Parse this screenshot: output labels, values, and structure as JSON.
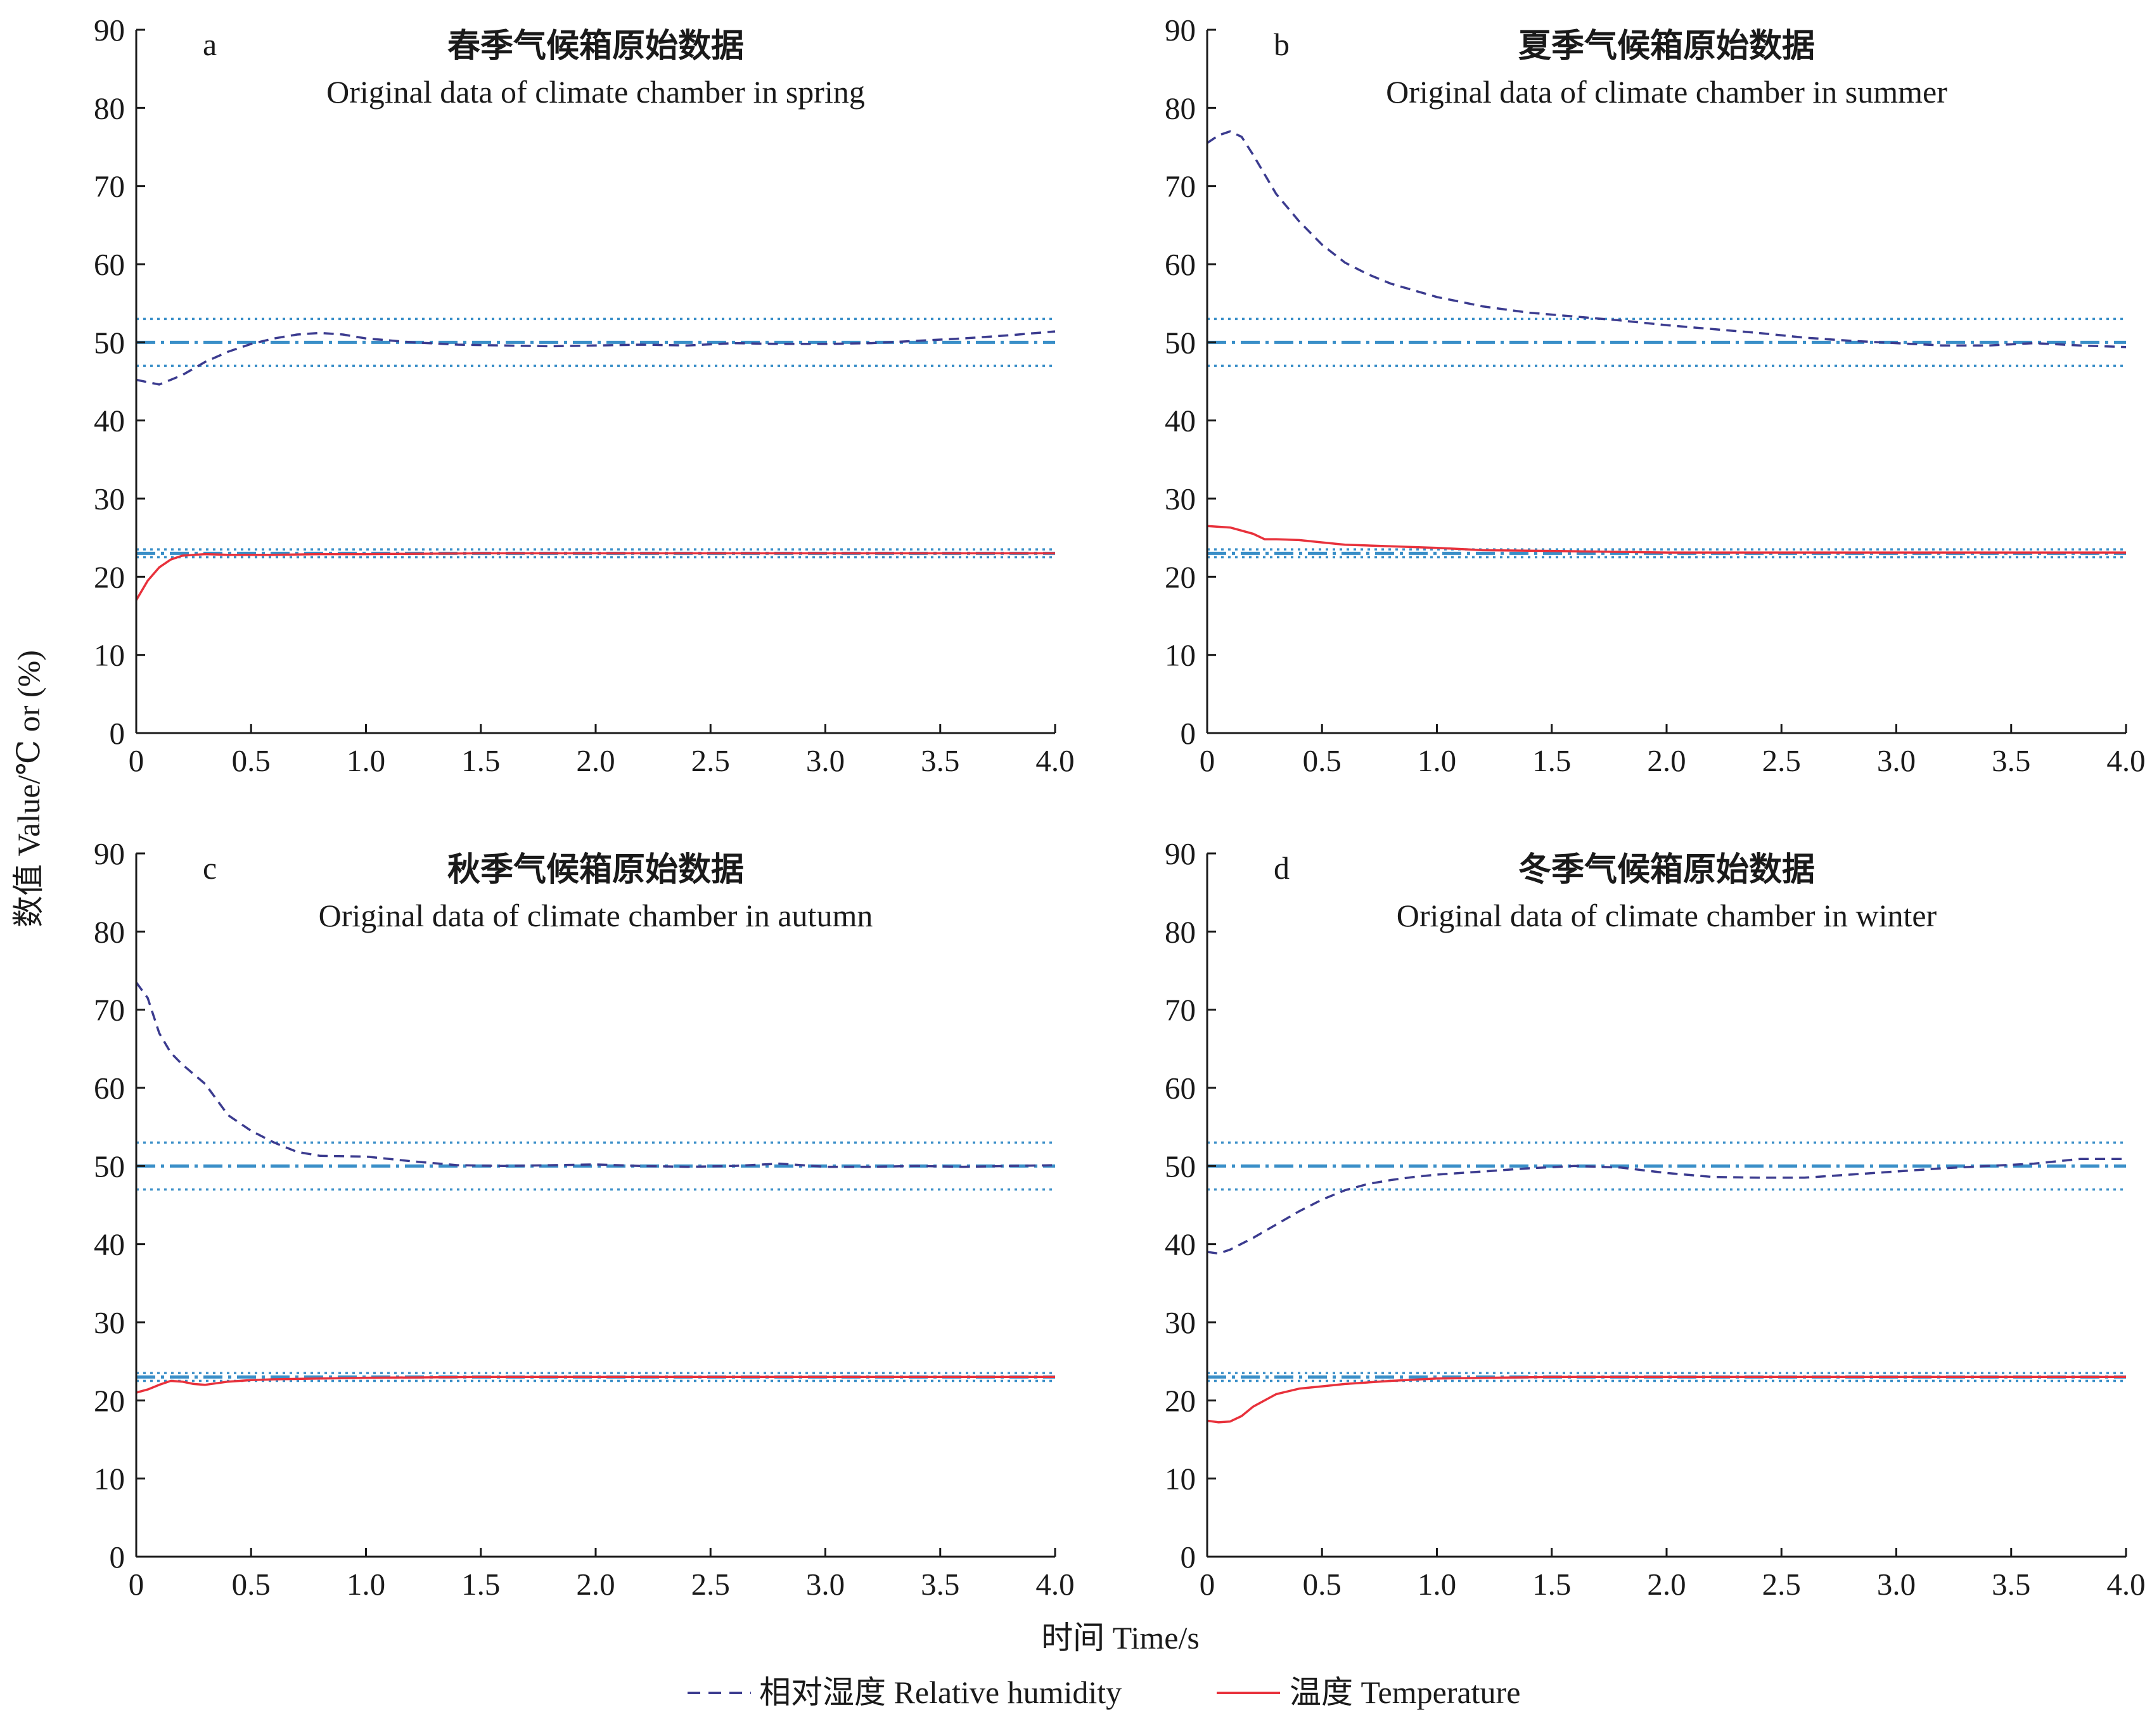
{
  "figure": {
    "ylabel": "数值  Value/℃ or (%)",
    "xlabel": "时间  Time/s",
    "legend": [
      {
        "label": "相对湿度  Relative humidity",
        "style": "dashed",
        "color": "#3b3b8f"
      },
      {
        "label": "温度  Temperature",
        "style": "solid",
        "color": "#e8313b"
      }
    ],
    "colors": {
      "humidity": "#3b3b8f",
      "temperature": "#e8313b",
      "reference": "#3a8fc8",
      "axis": "#1a1a1a"
    }
  },
  "chart_data": [
    {
      "type": "line",
      "panel": "a",
      "title": "春季气候箱原始数据",
      "subtitle": "Original data of climate chamber in spring",
      "xlim": [
        0,
        4
      ],
      "ylim": [
        0,
        90
      ],
      "xticks": [
        "0",
        "0.5",
        "1.0",
        "1.5",
        "2.0",
        "2.5",
        "3.0",
        "3.5",
        "4.0"
      ],
      "yticks": [
        "0",
        "10",
        "20",
        "30",
        "40",
        "50",
        "60",
        "70",
        "80",
        "90"
      ],
      "reference_lines": {
        "humidity_setpoint": 50,
        "humidity_band": [
          47,
          53
        ],
        "temperature_setpoint": 23,
        "temperature_band": [
          22.5,
          23.5
        ]
      },
      "series": [
        {
          "name": "相对湿度 Relative humidity",
          "x": [
            0,
            0.1,
            0.2,
            0.3,
            0.4,
            0.5,
            0.6,
            0.7,
            0.8,
            0.9,
            1.0,
            1.2,
            1.4,
            1.6,
            1.8,
            2.0,
            2.2,
            2.4,
            2.6,
            2.8,
            3.0,
            3.2,
            3.4,
            3.6,
            3.8,
            4.0
          ],
          "y": [
            45.2,
            44.6,
            45.8,
            47.5,
            48.8,
            49.8,
            50.5,
            51.0,
            51.2,
            51.0,
            50.5,
            50.0,
            49.7,
            49.6,
            49.5,
            49.6,
            49.7,
            49.6,
            49.9,
            49.8,
            49.8,
            49.9,
            50.2,
            50.5,
            50.9,
            51.4
          ]
        },
        {
          "name": "温度 Temperature",
          "x": [
            0,
            0.05,
            0.1,
            0.15,
            0.2,
            0.3,
            0.4,
            0.6,
            0.8,
            1.0,
            1.5,
            2.0,
            2.5,
            3.0,
            3.5,
            4.0
          ],
          "y": [
            17.0,
            19.5,
            21.2,
            22.2,
            22.7,
            22.9,
            22.8,
            22.8,
            22.9,
            22.9,
            23.0,
            23.0,
            23.0,
            23.0,
            23.0,
            23.0
          ]
        }
      ]
    },
    {
      "type": "line",
      "panel": "b",
      "title": "夏季气候箱原始数据",
      "subtitle": "Original data of climate chamber in summer",
      "xlim": [
        0,
        4
      ],
      "ylim": [
        0,
        90
      ],
      "xticks": [
        "0",
        "0.5",
        "1.0",
        "1.5",
        "2.0",
        "2.5",
        "3.0",
        "3.5",
        "4.0"
      ],
      "yticks": [
        "0",
        "10",
        "20",
        "30",
        "40",
        "50",
        "60",
        "70",
        "80",
        "90"
      ],
      "reference_lines": {
        "humidity_setpoint": 50,
        "humidity_band": [
          47,
          53
        ],
        "temperature_setpoint": 23,
        "temperature_band": [
          22.5,
          23.5
        ]
      },
      "series": [
        {
          "name": "相对湿度 Relative humidity",
          "x": [
            0,
            0.05,
            0.1,
            0.15,
            0.2,
            0.3,
            0.4,
            0.5,
            0.6,
            0.7,
            0.8,
            1.0,
            1.2,
            1.4,
            1.6,
            1.8,
            2.0,
            2.2,
            2.4,
            2.6,
            2.8,
            3.0,
            3.2,
            3.4,
            3.6,
            3.8,
            4.0
          ],
          "y": [
            75.5,
            76.5,
            77.0,
            76.3,
            74.0,
            69.0,
            65.5,
            62.5,
            60.2,
            58.7,
            57.5,
            55.8,
            54.6,
            53.8,
            53.3,
            52.8,
            52.2,
            51.7,
            51.2,
            50.6,
            50.2,
            49.9,
            49.6,
            49.6,
            49.9,
            49.6,
            49.4
          ]
        },
        {
          "name": "温度 Temperature",
          "x": [
            0,
            0.1,
            0.2,
            0.25,
            0.3,
            0.4,
            0.5,
            0.6,
            0.8,
            1.0,
            1.2,
            1.5,
            2.0,
            2.5,
            3.0,
            3.5,
            4.0
          ],
          "y": [
            26.5,
            26.3,
            25.5,
            24.8,
            24.8,
            24.7,
            24.4,
            24.1,
            23.9,
            23.7,
            23.4,
            23.3,
            23.1,
            23.1,
            23.1,
            23.1,
            23.1
          ]
        }
      ]
    },
    {
      "type": "line",
      "panel": "c",
      "title": "秋季气候箱原始数据",
      "subtitle": "Original data of climate chamber in autumn",
      "xlim": [
        0,
        4
      ],
      "ylim": [
        0,
        90
      ],
      "xticks": [
        "0",
        "0.5",
        "1.0",
        "1.5",
        "2.0",
        "2.5",
        "3.0",
        "3.5",
        "4.0"
      ],
      "yticks": [
        "0",
        "10",
        "20",
        "30",
        "40",
        "50",
        "60",
        "70",
        "80",
        "90"
      ],
      "reference_lines": {
        "humidity_setpoint": 50,
        "humidity_band": [
          47,
          53
        ],
        "temperature_setpoint": 23,
        "temperature_band": [
          22.5,
          23.5
        ]
      },
      "series": [
        {
          "name": "相对湿度 Relative humidity",
          "x": [
            0,
            0.05,
            0.1,
            0.15,
            0.2,
            0.3,
            0.4,
            0.5,
            0.6,
            0.7,
            0.8,
            1.0,
            1.2,
            1.4,
            1.6,
            1.8,
            2.0,
            2.2,
            2.4,
            2.6,
            2.8,
            3.0,
            3.2,
            3.4,
            3.6,
            3.8,
            4.0
          ],
          "y": [
            73.5,
            71.5,
            67.0,
            64.5,
            63.0,
            60.5,
            56.5,
            54.5,
            53.0,
            51.8,
            51.3,
            51.2,
            50.6,
            50.1,
            50.0,
            50.1,
            50.2,
            50.0,
            49.9,
            50.0,
            50.3,
            49.9,
            49.9,
            50.0,
            49.9,
            50.0,
            50.1
          ]
        },
        {
          "name": "温度 Temperature",
          "x": [
            0,
            0.05,
            0.1,
            0.15,
            0.2,
            0.25,
            0.3,
            0.4,
            0.5,
            0.6,
            0.8,
            1.0,
            1.5,
            2.0,
            2.5,
            3.0,
            3.5,
            4.0
          ],
          "y": [
            21.0,
            21.4,
            22.0,
            22.5,
            22.4,
            22.1,
            22.0,
            22.4,
            22.6,
            22.7,
            22.8,
            22.9,
            23.0,
            23.0,
            23.0,
            23.0,
            23.0,
            23.0
          ]
        }
      ]
    },
    {
      "type": "line",
      "panel": "d",
      "title": "冬季气候箱原始数据",
      "subtitle": "Original data of climate chamber in winter",
      "xlim": [
        0,
        4
      ],
      "ylim": [
        0,
        90
      ],
      "xticks": [
        "0",
        "0.5",
        "1.0",
        "1.5",
        "2.0",
        "2.5",
        "3.0",
        "3.5",
        "4.0"
      ],
      "yticks": [
        "0",
        "10",
        "20",
        "30",
        "40",
        "50",
        "60",
        "70",
        "80",
        "90"
      ],
      "reference_lines": {
        "humidity_setpoint": 50,
        "humidity_band": [
          47,
          53
        ],
        "temperature_setpoint": 23,
        "temperature_band": [
          22.5,
          23.5
        ]
      },
      "series": [
        {
          "name": "相对湿度 Relative humidity",
          "x": [
            0,
            0.05,
            0.1,
            0.2,
            0.3,
            0.4,
            0.5,
            0.6,
            0.7,
            0.8,
            0.9,
            1.0,
            1.2,
            1.4,
            1.6,
            1.8,
            2.0,
            2.2,
            2.4,
            2.6,
            2.8,
            3.0,
            3.2,
            3.4,
            3.6,
            3.8,
            4.0
          ],
          "y": [
            39.0,
            38.8,
            39.3,
            40.8,
            42.5,
            44.2,
            45.7,
            46.9,
            47.7,
            48.2,
            48.6,
            48.9,
            49.3,
            49.7,
            50.0,
            49.8,
            49.1,
            48.6,
            48.5,
            48.5,
            48.9,
            49.3,
            49.7,
            50.0,
            50.3,
            50.9,
            50.9
          ]
        },
        {
          "name": "温度 Temperature",
          "x": [
            0,
            0.05,
            0.1,
            0.15,
            0.2,
            0.3,
            0.4,
            0.5,
            0.6,
            0.8,
            1.0,
            1.5,
            2.0,
            2.5,
            3.0,
            3.5,
            4.0
          ],
          "y": [
            17.4,
            17.2,
            17.3,
            18.0,
            19.2,
            20.8,
            21.5,
            21.8,
            22.1,
            22.5,
            22.8,
            23.0,
            23.0,
            23.0,
            23.0,
            23.0,
            23.0
          ]
        }
      ]
    }
  ]
}
